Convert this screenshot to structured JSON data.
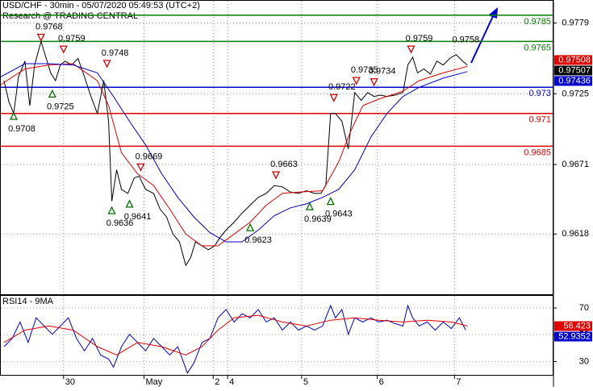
{
  "chart_data": [
    {
      "type": "line",
      "title": "USD/CHF - 30min - 05/07/2020 05:49:53 (UTC+2)",
      "subtitle": "Research @ TRADING CENTRAL",
      "xlim": [
        0,
        343
      ],
      "ylim": [
        0.9572,
        0.9796
      ],
      "yticks": [
        0.9779,
        0.9725,
        0.9671,
        0.9618
      ],
      "grid": true,
      "xticks": [
        {
          "value": 39,
          "label": "30"
        },
        {
          "value": 89,
          "label": "May"
        },
        {
          "value": 132,
          "label": "2"
        },
        {
          "value": 141,
          "label": "4"
        },
        {
          "value": 187,
          "label": "5"
        },
        {
          "value": 234,
          "label": "6"
        },
        {
          "value": 282,
          "label": "7"
        }
      ],
      "series": [
        {
          "color": "#000000",
          "x": [
            2,
            5,
            8,
            11,
            15,
            18,
            21,
            25,
            28,
            31,
            34,
            37,
            40,
            44,
            48,
            52,
            56,
            60,
            64,
            67,
            69,
            72,
            75,
            79,
            83,
            86,
            90,
            95,
            99,
            103,
            107,
            111,
            115,
            118,
            121,
            125,
            129,
            133,
            136,
            140,
            145,
            150,
            155,
            160,
            165,
            170,
            175,
            180,
            185,
            190,
            195,
            199,
            202,
            205,
            208,
            212,
            216,
            218,
            220,
            224,
            228,
            232,
            236,
            240,
            245,
            250,
            253,
            256,
            259,
            263,
            267,
            271,
            275,
            279,
            283,
            287,
            290
          ],
          "values": [
            0.9735,
            0.9719,
            0.971,
            0.9738,
            0.975,
            0.9716,
            0.9747,
            0.9765,
            0.9753,
            0.9741,
            0.9735,
            0.9747,
            0.975,
            0.9747,
            0.9752,
            0.9738,
            0.9723,
            0.971,
            0.9735,
            0.9704,
            0.9643,
            0.9667,
            0.9652,
            0.9649,
            0.9661,
            0.9662,
            0.9652,
            0.9649,
            0.9637,
            0.9631,
            0.9618,
            0.9612,
            0.9594,
            0.96,
            0.9612,
            0.9609,
            0.9606,
            0.9609,
            0.9615,
            0.9621,
            0.9627,
            0.9634,
            0.964,
            0.9646,
            0.9649,
            0.9655,
            0.9654,
            0.965,
            0.9649,
            0.9651,
            0.9649,
            0.9649,
            0.9655,
            0.971,
            0.971,
            0.9704,
            0.9683,
            0.9704,
            0.9726,
            0.972,
            0.9726,
            0.9723,
            0.9724,
            0.9723,
            0.9724,
            0.9726,
            0.9747,
            0.9753,
            0.9741,
            0.9744,
            0.974,
            0.975,
            0.9747,
            0.9752,
            0.9755,
            0.975,
            0.9747
          ]
        },
        {
          "color": "#e00000",
          "x": [
            0,
            15,
            30,
            45,
            60,
            67,
            75,
            85,
            95,
            105,
            115,
            125,
            135,
            145,
            155,
            165,
            175,
            185,
            200,
            210,
            217,
            225,
            235,
            250,
            260,
            275,
            290
          ],
          "values": [
            0.9732,
            0.9744,
            0.9747,
            0.9748,
            0.9735,
            0.9716,
            0.968,
            0.9664,
            0.9655,
            0.9637,
            0.9618,
            0.9609,
            0.9609,
            0.9618,
            0.9627,
            0.964,
            0.9649,
            0.965,
            0.9651,
            0.9673,
            0.9695,
            0.9716,
            0.9721,
            0.9727,
            0.9735,
            0.9741,
            0.9746
          ]
        },
        {
          "color": "#0000cc",
          "x": [
            0,
            15,
            30,
            45,
            60,
            70,
            80,
            90,
            100,
            110,
            120,
            130,
            140,
            150,
            160,
            170,
            180,
            190,
            200,
            210,
            220,
            230,
            240,
            250,
            260,
            275,
            290
          ],
          "values": [
            0.9738,
            0.9748,
            0.9748,
            0.9747,
            0.9741,
            0.9723,
            0.9704,
            0.9686,
            0.9664,
            0.9646,
            0.9631,
            0.9619,
            0.9612,
            0.9612,
            0.9621,
            0.9632,
            0.9638,
            0.9641,
            0.9646,
            0.9652,
            0.9667,
            0.9692,
            0.971,
            0.9723,
            0.973,
            0.9737,
            0.9742
          ]
        }
      ],
      "levels": [
        {
          "value": 0.9785,
          "color": "#008000"
        },
        {
          "value": 0.9765,
          "color": "#008000"
        },
        {
          "value": 0.973,
          "color": "#0000cc"
        },
        {
          "value": 0.971,
          "color": "#e00000"
        },
        {
          "value": 0.9685,
          "color": "#e00000"
        }
      ],
      "price_labels": [
        {
          "value": 0.97508,
          "color": "#e00000"
        },
        {
          "value": 0.97507,
          "color": "#000000"
        },
        {
          "value": 0.97436,
          "color": "#0000cc"
        }
      ],
      "annotations": [
        {
          "x": 8,
          "y": 0.9708,
          "dir": "up"
        },
        {
          "x": 25,
          "y": 0.9768,
          "dir": "down"
        },
        {
          "x": 39,
          "y": 0.9759,
          "dir": "down"
        },
        {
          "x": 32,
          "y": 0.9725,
          "dir": "up"
        },
        {
          "x": 66,
          "y": 0.9748,
          "dir": "down"
        },
        {
          "x": 69,
          "y": 0.9636,
          "dir": "up"
        },
        {
          "x": 80,
          "y": 0.9641,
          "dir": "up"
        },
        {
          "x": 87,
          "y": 0.9669,
          "dir": "down"
        },
        {
          "x": 155,
          "y": 0.9623,
          "dir": "up"
        },
        {
          "x": 171,
          "y": 0.9663,
          "dir": "down"
        },
        {
          "x": 192,
          "y": 0.9639,
          "dir": "up"
        },
        {
          "x": 205,
          "y": 0.9643,
          "dir": "up"
        },
        {
          "x": 207,
          "y": 0.9722,
          "dir": "down"
        },
        {
          "x": 221,
          "y": 0.9735,
          "dir": "down"
        },
        {
          "x": 232,
          "y": 0.9734,
          "dir": "down"
        },
        {
          "x": 255,
          "y": 0.9759,
          "dir": "down"
        },
        {
          "x": 289,
          "y": 0.9758,
          "dir": "none"
        }
      ]
    },
    {
      "type": "line",
      "title": "RSI14 - 9MA",
      "xlim": [
        0,
        343
      ],
      "ylim": [
        20,
        79
      ],
      "yticks": [
        70,
        50,
        30
      ],
      "grid": true,
      "series": [
        {
          "color": "#0000cc",
          "x": [
            2,
            7,
            12,
            17,
            22,
            27,
            32,
            37,
            42,
            47,
            52,
            57,
            62,
            67,
            70,
            75,
            80,
            85,
            90,
            95,
            100,
            105,
            110,
            116,
            120,
            125,
            130,
            135,
            140,
            145,
            150,
            155,
            160,
            165,
            170,
            175,
            180,
            185,
            190,
            195,
            200,
            205,
            208,
            212,
            216,
            220,
            225,
            230,
            235,
            240,
            245,
            250,
            253,
            256,
            260,
            265,
            270,
            275,
            280,
            285,
            289
          ],
          "values": [
            41.1,
            47.2,
            59.5,
            44.2,
            62.6,
            56.5,
            50.3,
            56.5,
            62.6,
            47.2,
            38.0,
            47.2,
            34.9,
            31.8,
            25.7,
            41.1,
            50.3,
            44.2,
            38.0,
            47.2,
            41.1,
            34.9,
            41.1,
            21.4,
            28.8,
            44.2,
            47.2,
            62.6,
            68.8,
            59.5,
            65.7,
            62.6,
            68.8,
            59.5,
            62.6,
            53.4,
            59.5,
            53.4,
            56.5,
            53.4,
            56.5,
            71.8,
            62.6,
            68.8,
            50.3,
            62.6,
            59.5,
            62.6,
            59.5,
            60.8,
            58.3,
            56.5,
            71.8,
            62.6,
            56.5,
            59.5,
            53.4,
            59.5,
            54.6,
            62.6,
            53.4
          ]
        },
        {
          "color": "#e00000",
          "x": [
            2,
            15,
            30,
            45,
            60,
            72,
            85,
            100,
            115,
            125,
            135,
            145,
            160,
            175,
            190,
            205,
            220,
            235,
            250,
            265,
            280,
            290
          ],
          "values": [
            44.2,
            53.4,
            56.5,
            53.4,
            41.1,
            34.9,
            44.2,
            41.1,
            34.9,
            41.1,
            53.4,
            62.6,
            64.5,
            59.5,
            56.5,
            60.8,
            62.6,
            60.8,
            59.5,
            60.8,
            59.5,
            56.5
          ]
        }
      ],
      "price_labels": [
        {
          "value": 56.423,
          "color": "#e00000"
        },
        {
          "value": 52.9352,
          "color": "#0000cc"
        }
      ]
    }
  ]
}
